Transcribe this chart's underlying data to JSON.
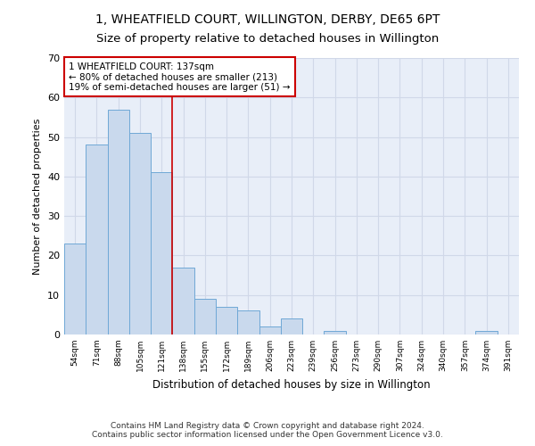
{
  "title": "1, WHEATFIELD COURT, WILLINGTON, DERBY, DE65 6PT",
  "subtitle": "Size of property relative to detached houses in Willington",
  "xlabel": "Distribution of detached houses by size in Willington",
  "ylabel": "Number of detached properties",
  "footnote1": "Contains HM Land Registry data © Crown copyright and database right 2024.",
  "footnote2": "Contains public sector information licensed under the Open Government Licence v3.0.",
  "bar_labels": [
    "54sqm",
    "71sqm",
    "88sqm",
    "105sqm",
    "121sqm",
    "138sqm",
    "155sqm",
    "172sqm",
    "189sqm",
    "206sqm",
    "223sqm",
    "239sqm",
    "256sqm",
    "273sqm",
    "290sqm",
    "307sqm",
    "324sqm",
    "340sqm",
    "357sqm",
    "374sqm",
    "391sqm"
  ],
  "bar_values": [
    23,
    48,
    57,
    51,
    41,
    17,
    9,
    7,
    6,
    2,
    4,
    0,
    1,
    0,
    0,
    0,
    0,
    0,
    0,
    1,
    0
  ],
  "bar_color": "#c9d9ed",
  "bar_edge_color": "#6fa8d6",
  "vline_x_index": 5,
  "vline_color": "#cc0000",
  "annotation_text": "1 WHEATFIELD COURT: 137sqm\n← 80% of detached houses are smaller (213)\n19% of semi-detached houses are larger (51) →",
  "annotation_box_color": "#ffffff",
  "annotation_box_edge_color": "#cc0000",
  "ylim": [
    0,
    70
  ],
  "yticks": [
    0,
    10,
    20,
    30,
    40,
    50,
    60,
    70
  ],
  "grid_color": "#d0d8e8",
  "bg_color": "#e8eef8",
  "title_fontsize": 10,
  "subtitle_fontsize": 9.5,
  "footnote_fontsize": 6.5
}
